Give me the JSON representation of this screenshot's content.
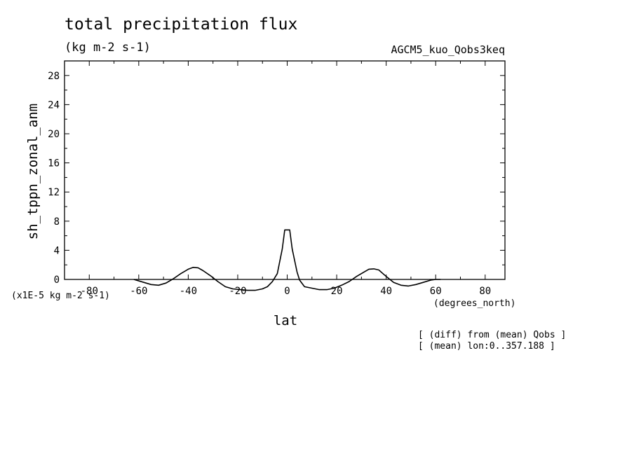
{
  "header": {
    "title": "total precipitation flux",
    "units": "(kg m-2 s-1)",
    "run_name": "AGCM5_kuo_Qobs3keq"
  },
  "footer": {
    "scale_note": "(x1E-5 kg m-2 s-1)",
    "xaxis_units": "(degrees_north)",
    "note_line1": "[ (diff) from (mean) Qobs ]",
    "note_line2": "[ (mean) lon:0..357.188 ]"
  },
  "chart_data": {
    "type": "line",
    "title": "total precipitation flux",
    "xlabel": "lat",
    "ylabel": "sh_tppn_zonal_anm",
    "xlim": [
      -90,
      88
    ],
    "ylim": [
      0,
      30
    ],
    "x_ticks": [
      -80,
      -60,
      -40,
      -20,
      0,
      20,
      40,
      60,
      80
    ],
    "x_tick_labels": [
      "-80",
      "-60",
      "-40",
      "-20",
      "0",
      "20",
      "40",
      "60",
      "80"
    ],
    "y_ticks": [
      0,
      4,
      8,
      12,
      16,
      20,
      24,
      28
    ],
    "y_tick_labels": [
      "0",
      "4",
      "8",
      "12",
      "16",
      "20",
      "24",
      "28"
    ],
    "grid": false,
    "series": [
      {
        "x": [
          -62,
          -58,
          -55,
          -52,
          -49,
          -46,
          -43,
          -40,
          -38,
          -36,
          -34,
          -31,
          -28,
          -25,
          -22,
          -19,
          -16,
          -13,
          -10,
          -8,
          -6,
          -4,
          -2,
          -1,
          1,
          2,
          4,
          5,
          7,
          10,
          13,
          16,
          19,
          22,
          25,
          28,
          31,
          33,
          35,
          37,
          40,
          43,
          46,
          49,
          52,
          55,
          58,
          60,
          62
        ],
        "y": [
          0,
          -0.4,
          -0.7,
          -0.8,
          -0.5,
          0.1,
          0.8,
          1.4,
          1.65,
          1.6,
          1.2,
          0.5,
          -0.3,
          -1.0,
          -1.3,
          -1.4,
          -1.5,
          -1.5,
          -1.3,
          -1.0,
          -0.3,
          0.8,
          4.2,
          6.8,
          6.8,
          4.2,
          1.0,
          -0.1,
          -1.0,
          -1.2,
          -1.4,
          -1.4,
          -1.2,
          -0.8,
          -0.3,
          0.4,
          1.0,
          1.4,
          1.45,
          1.3,
          0.4,
          -0.4,
          -0.8,
          -0.9,
          -0.7,
          -0.4,
          -0.1,
          0,
          0
        ]
      }
    ]
  }
}
